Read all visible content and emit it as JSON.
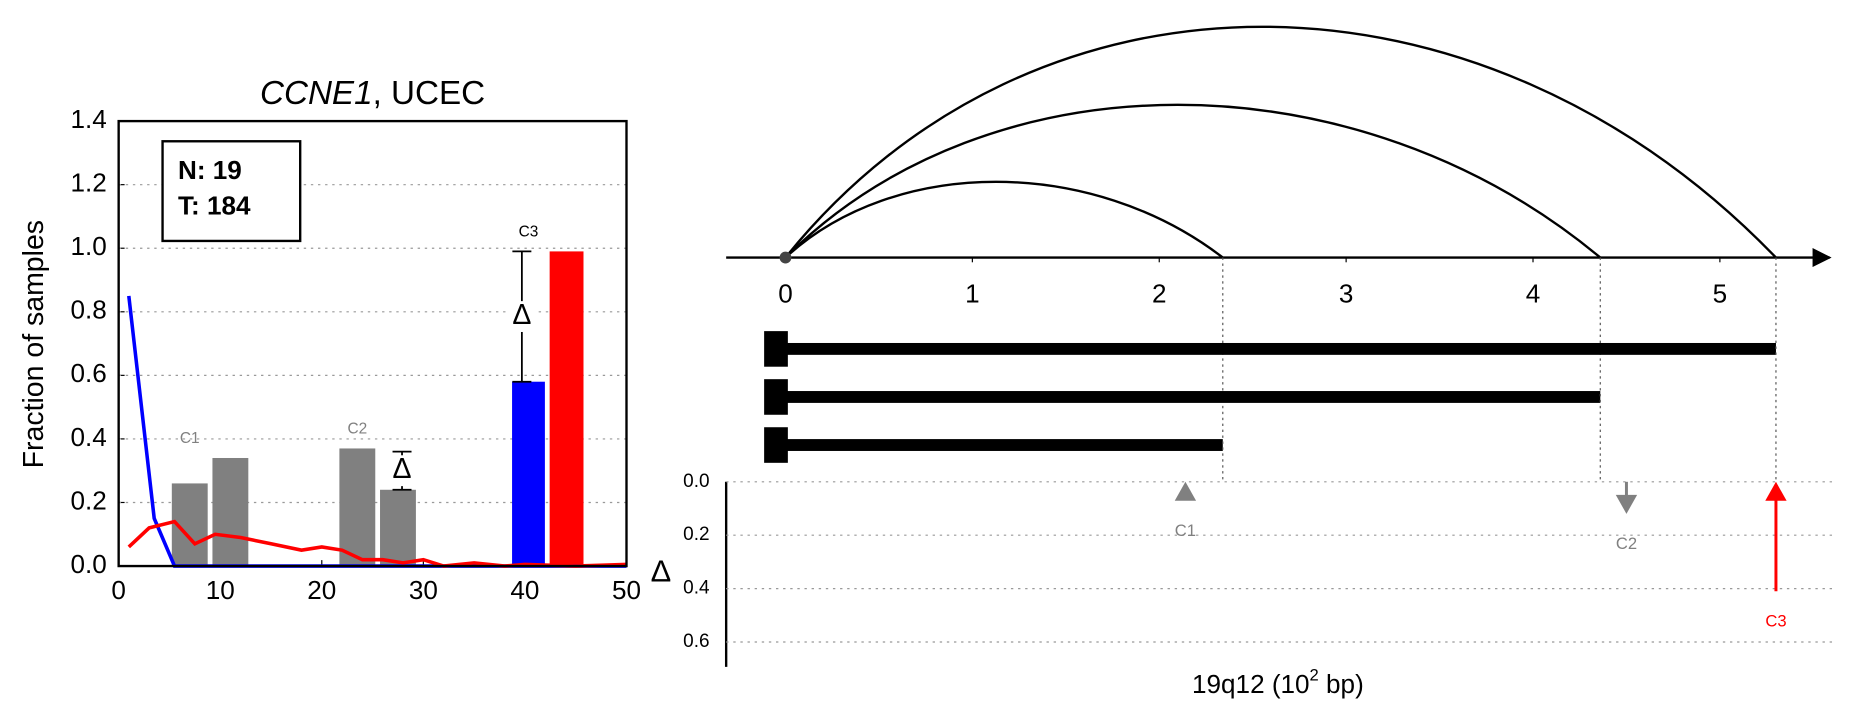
{
  "chart_data": [
    {
      "type": "histogram-line",
      "title": [
        "CCNE1",
        ", UCEC"
      ],
      "ylabel": "Fraction of samples",
      "annotations": [
        "N: 19",
        "T: 184"
      ],
      "xlim": [
        0,
        50
      ],
      "xticks": [
        0,
        10,
        20,
        30,
        40,
        50
      ],
      "ylim": [
        0,
        1.4
      ],
      "yticks": [
        {
          "value": 0,
          "label": "0.0"
        },
        0.2,
        0.4,
        0.6,
        0.8,
        {
          "value": 1,
          "label": "1.0"
        },
        1.2,
        1.4
      ],
      "grid": true,
      "groups": [
        {
          "label": "C1",
          "bins": [
            5,
            9,
            13
          ],
          "values": [
            0.26,
            0.34
          ],
          "colors": [
            "#808080",
            "#808080"
          ]
        },
        {
          "label": "C2",
          "bins": [
            21.5,
            25.5,
            29.5
          ],
          "values": [
            0.37,
            0.24
          ],
          "colors": [
            "#808080",
            "#808080"
          ]
        },
        {
          "label": "C3",
          "bins": [
            38.5,
            42.2,
            46
          ],
          "values": [
            0.58,
            0.99
          ],
          "colors": [
            "#0000ff",
            "#ff0000"
          ]
        }
      ],
      "errorbars": [
        {
          "x": 27.9,
          "values": [
            0.24,
            0.36
          ],
          "label": "Δ"
        },
        {
          "x": 39.7,
          "values": [
            0.58,
            0.99
          ],
          "label": "Δ"
        }
      ],
      "series": [
        {
          "color": "#0000ff",
          "x": [
            1,
            3.5,
            5.5,
            10,
            20,
            30,
            40,
            50
          ],
          "values": [
            0.85,
            0.15,
            0,
            0,
            0,
            0,
            0,
            0
          ]
        },
        {
          "color": "#ff0000",
          "x": [
            1,
            3,
            5.5,
            7.5,
            9.5,
            12,
            15,
            18,
            20,
            22,
            24,
            26,
            28,
            30,
            32,
            35,
            38,
            40,
            45,
            50
          ],
          "values": [
            0.06,
            0.12,
            0.14,
            0.07,
            0.1,
            0.09,
            0.07,
            0.05,
            0.06,
            0.05,
            0.02,
            0.02,
            0.01,
            0.02,
            0,
            0.01,
            0,
            0.005,
            0,
            0.005
          ]
        }
      ]
    },
    {
      "type": "arc",
      "xlabel": [
        "19q12 (10",
        "2",
        " bp)"
      ],
      "ylabel": "Δ",
      "xlim": [
        0,
        5.6
      ],
      "xticks": [
        0,
        1,
        2,
        3,
        4,
        5
      ],
      "ends": [
        2.34,
        4.36,
        5.3
      ],
      "ylim": [
        0,
        0.7
      ],
      "yticks": [
        {
          "value": 0,
          "label": "0.0"
        },
        0.2,
        0.4,
        0.6
      ],
      "grid": true,
      "arrows": {
        "x": [
          2.14,
          4.5,
          5.3
        ],
        "values": [
          0.07,
          0.12,
          0.41
        ],
        "directions": [
          "up",
          "down",
          "up"
        ],
        "labels": [
          "C1",
          "C2",
          "C3"
        ],
        "colors": [
          "#808080",
          "#808080",
          "#ff0000"
        ]
      }
    }
  ]
}
